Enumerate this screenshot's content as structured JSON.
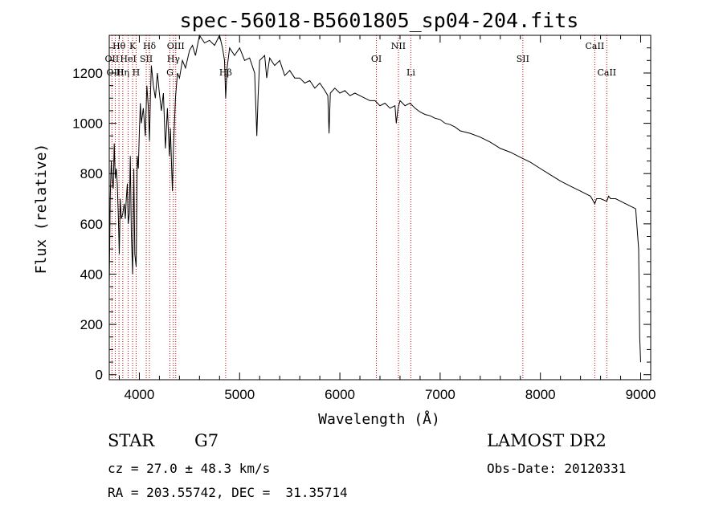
{
  "chart_data": {
    "type": "line",
    "title": "spec-56018-B5601805_sp04-204.fits",
    "xlabel": "Wavelength (Å)",
    "ylabel": "Flux (relative)",
    "xlim": [
      3700,
      9100
    ],
    "ylim": [
      -20,
      1350
    ],
    "xticks": [
      4000,
      5000,
      6000,
      7000,
      8000,
      9000
    ],
    "yticks": [
      0,
      200,
      400,
      600,
      800,
      1000,
      1200
    ],
    "grid": false,
    "line_color": "#000000",
    "marker_color": "#cc0000",
    "series": [
      {
        "x": [
          3700,
          3710,
          3720,
          3730,
          3740,
          3750,
          3760,
          3770,
          3780,
          3790,
          3800,
          3810,
          3820,
          3835,
          3850,
          3860,
          3870,
          3880,
          3889,
          3900,
          3910,
          3920,
          3933,
          3945,
          3955,
          3968,
          3980,
          3990,
          4000,
          4010,
          4020,
          4040,
          4060,
          4075,
          4090,
          4101,
          4110,
          4120,
          4140,
          4160,
          4180,
          4200,
          4220,
          4240,
          4260,
          4280,
          4300,
          4310,
          4320,
          4330,
          4340,
          4360,
          4380,
          4400,
          4430,
          4460,
          4500,
          4530,
          4560,
          4600,
          4650,
          4700,
          4750,
          4800,
          4830,
          4850,
          4861,
          4875,
          4900,
          4950,
          5000,
          5050,
          5100,
          5150,
          5172,
          5184,
          5200,
          5250,
          5270,
          5300,
          5350,
          5400,
          5450,
          5500,
          5550,
          5600,
          5650,
          5700,
          5750,
          5800,
          5850,
          5880,
          5892,
          5905,
          5950,
          6000,
          6050,
          6100,
          6150,
          6200,
          6250,
          6300,
          6350,
          6400,
          6450,
          6500,
          6550,
          6563,
          6580,
          6600,
          6650,
          6700,
          6750,
          6800,
          6850,
          6900,
          6950,
          7000,
          7050,
          7100,
          7150,
          7200,
          7300,
          7400,
          7500,
          7600,
          7700,
          7800,
          7900,
          8000,
          8100,
          8200,
          8300,
          8400,
          8500,
          8542,
          8560,
          8600,
          8662,
          8680,
          8700,
          8750,
          8800,
          8850,
          8900,
          8950,
          8980,
          8990,
          9000
        ],
        "values": [
          350,
          700,
          850,
          780,
          740,
          920,
          780,
          820,
          760,
          640,
          480,
          700,
          620,
          640,
          680,
          620,
          700,
          760,
          600,
          640,
          870,
          560,
          400,
          820,
          480,
          430,
          870,
          820,
          960,
          1080,
          1000,
          1060,
          950,
          1150,
          1060,
          930,
          1100,
          1230,
          1150,
          1100,
          1200,
          1120,
          1050,
          1120,
          900,
          1060,
          870,
          980,
          850,
          730,
          900,
          1100,
          1200,
          1180,
          1250,
          1220,
          1290,
          1310,
          1270,
          1350,
          1320,
          1330,
          1310,
          1350,
          1300,
          1250,
          1100,
          1220,
          1300,
          1270,
          1300,
          1250,
          1260,
          1200,
          950,
          1100,
          1250,
          1270,
          1180,
          1260,
          1230,
          1250,
          1190,
          1210,
          1180,
          1180,
          1160,
          1170,
          1140,
          1160,
          1130,
          1110,
          960,
          1120,
          1140,
          1120,
          1130,
          1110,
          1120,
          1110,
          1100,
          1090,
          1090,
          1070,
          1080,
          1060,
          1070,
          1000,
          1060,
          1090,
          1070,
          1080,
          1060,
          1045,
          1035,
          1030,
          1020,
          1015,
          1000,
          995,
          985,
          970,
          960,
          945,
          925,
          900,
          885,
          865,
          845,
          820,
          795,
          770,
          750,
          730,
          710,
          680,
          700,
          700,
          690,
          710,
          700,
          700,
          690,
          680,
          670,
          660,
          500,
          150,
          50
        ]
      }
    ],
    "lines": [
      {
        "label": "Hθ",
        "x": 3797,
        "row": 1
      },
      {
        "label": "OII",
        "x": 3727,
        "row": 2
      },
      {
        "label": "OIII",
        "x": 3760,
        "row": 3
      },
      {
        "label": "Hη",
        "x": 3835,
        "row": 3
      },
      {
        "label": "K",
        "x": 3933,
        "row": 1
      },
      {
        "label": "HeI",
        "x": 3889,
        "row": 2
      },
      {
        "label": "SII",
        "x": 4069,
        "row": 2
      },
      {
        "label": "H",
        "x": 3968,
        "row": 3
      },
      {
        "label": "Hδ",
        "x": 4101,
        "row": 1
      },
      {
        "label": "OIII",
        "x": 4363,
        "row": 1
      },
      {
        "label": "Hγ",
        "x": 4340,
        "row": 2
      },
      {
        "label": "G",
        "x": 4305,
        "row": 3
      },
      {
        "label": "Hβ",
        "x": 4861,
        "row": 3
      },
      {
        "label": "NII",
        "x": 6584,
        "row": 1
      },
      {
        "label": "OI",
        "x": 6364,
        "row": 2
      },
      {
        "label": "Li",
        "x": 6708,
        "row": 3
      },
      {
        "label": "SII",
        "x": 7825,
        "row": 2
      },
      {
        "label": "CaII",
        "x": 8542,
        "row": 1
      },
      {
        "label": "CaII",
        "x": 8662,
        "row": 3
      }
    ]
  },
  "info": {
    "object_class": "STAR",
    "subclass": "G7",
    "survey": "LAMOST DR2",
    "redshift": "cz = 27.0 ± 48.3 km/s",
    "obs_date": "Obs-Date: 20120331",
    "coords": "RA = 203.55742, DEC =  31.35714"
  }
}
